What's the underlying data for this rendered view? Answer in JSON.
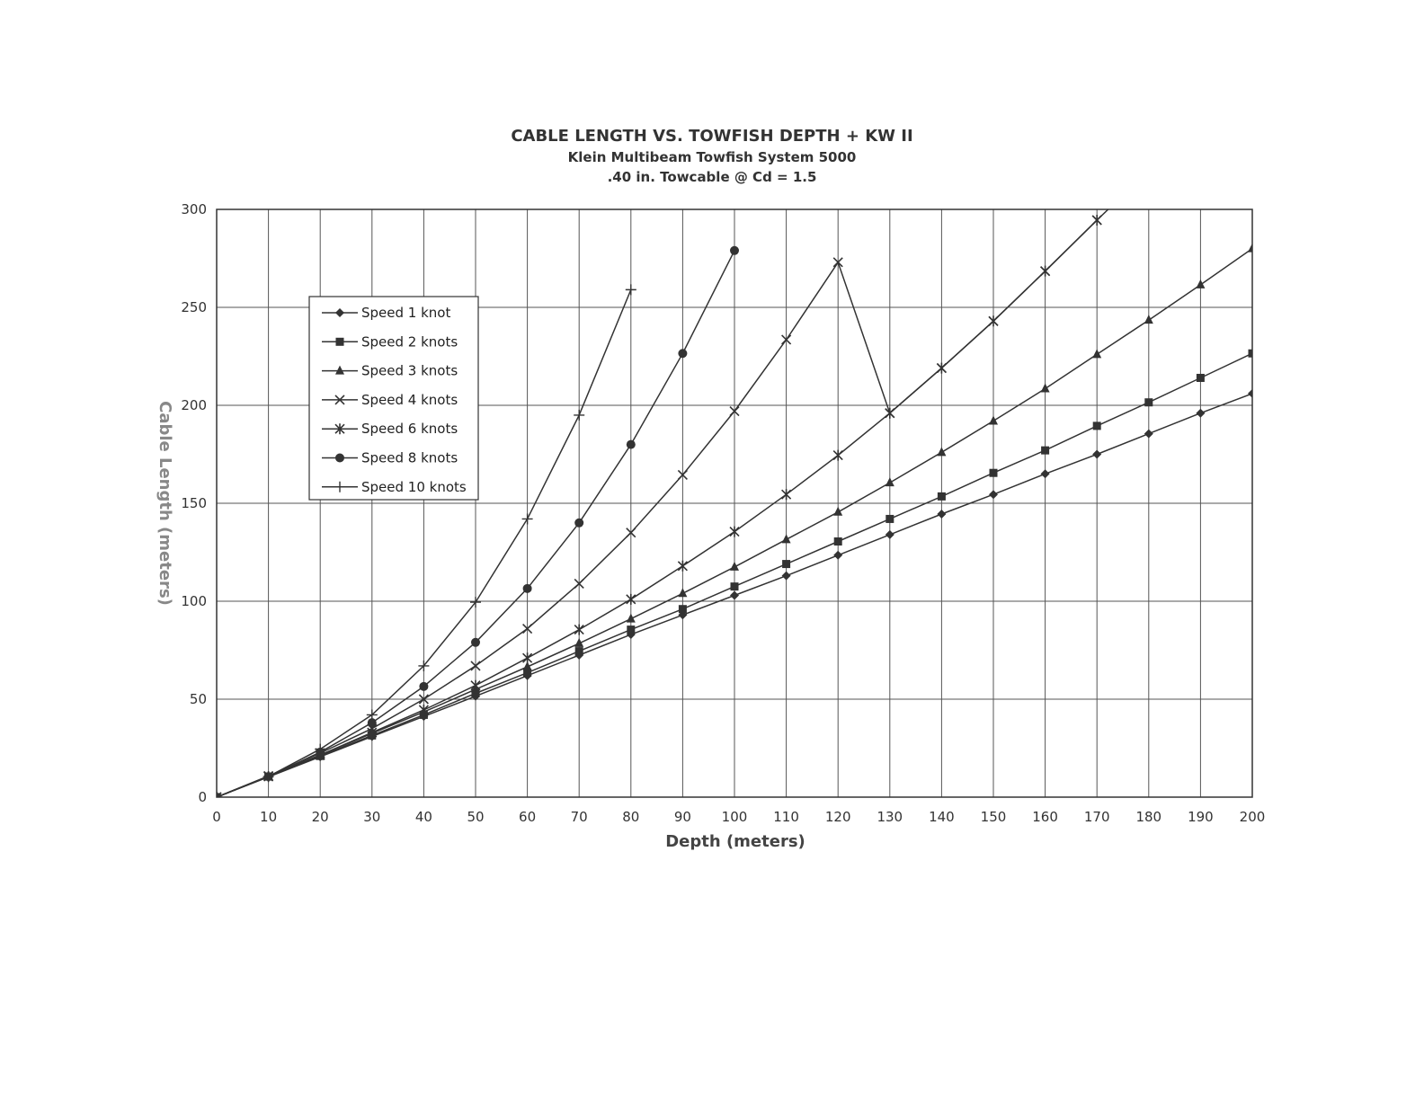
{
  "chart_data": {
    "type": "line",
    "title": "CABLE LENGTH VS. TOWFISH DEPTH + KW II",
    "subtitle": "Klein Multibeam Towfish System 5000",
    "subtitle2": ".40 in. Towcable @ Cd = 1.5",
    "xlabel": "Depth (meters)",
    "ylabel": "Cable Length (meters)",
    "xlim": [
      0,
      200
    ],
    "ylim": [
      0,
      300
    ],
    "xticks": [
      0,
      10,
      20,
      30,
      40,
      50,
      60,
      70,
      80,
      90,
      100,
      110,
      120,
      130,
      140,
      150,
      160,
      170,
      180,
      190,
      200
    ],
    "yticks": [
      0,
      50,
      100,
      150,
      200,
      250,
      300
    ],
    "grid": true,
    "legend_position": "upper-left",
    "line_color": "#333333",
    "axis_title_color_y": "#888888",
    "series": [
      {
        "name": "Speed 1 knot",
        "marker": "diamond",
        "x": [
          0,
          10,
          20,
          30,
          40,
          50,
          60,
          70,
          80,
          90,
          100,
          110,
          120,
          130,
          140,
          150,
          160,
          170,
          180,
          190,
          200
        ],
        "y": [
          0,
          10.3,
          20.6,
          30.9,
          41.2,
          51.5,
          62,
          72.5,
          83,
          93,
          103,
          113,
          123.5,
          134,
          144.5,
          154.5,
          165,
          175,
          185.5,
          196,
          206
        ]
      },
      {
        "name": "Speed 2 knots",
        "marker": "square",
        "x": [
          0,
          10,
          20,
          30,
          40,
          50,
          60,
          70,
          80,
          90,
          100,
          110,
          120,
          130,
          140,
          150,
          160,
          170,
          180,
          190,
          200
        ],
        "y": [
          0,
          10.5,
          21,
          31.5,
          42,
          53,
          63.5,
          74.5,
          85.5,
          96,
          107.5,
          119,
          130.5,
          142,
          153.5,
          165.5,
          177,
          189.5,
          201.5,
          214,
          226.5
        ]
      },
      {
        "name": "Speed 3 knots",
        "marker": "triangle",
        "x": [
          0,
          10,
          20,
          30,
          40,
          50,
          60,
          70,
          80,
          90,
          100,
          110,
          120,
          130,
          140,
          150,
          160,
          170,
          180,
          190,
          200
        ],
        "y": [
          0,
          10.6,
          21.5,
          32.5,
          43.5,
          55,
          66.5,
          78.5,
          91,
          104,
          117.5,
          131.5,
          145.5,
          160.5,
          176,
          192,
          208.5,
          226,
          243.5,
          261.5,
          280
        ]
      },
      {
        "name": "Speed 4 knots",
        "marker": "x",
        "x": [
          0,
          10,
          20,
          30,
          40,
          50,
          60,
          70,
          80,
          90,
          100,
          110,
          120,
          130,
          140,
          150,
          160,
          170
        ],
        "y": [
          0,
          10.8,
          22.5,
          35,
          50,
          67,
          86,
          109,
          135,
          164.5,
          197,
          233.5,
          273,
          196,
          219,
          243,
          268.5,
          294.5
        ]
      },
      {
        "name": "Speed 6 knots",
        "marker": "star",
        "x": [
          0,
          10,
          20,
          30,
          40,
          50,
          60,
          70,
          80,
          90,
          100,
          110,
          120,
          130,
          140,
          150,
          160,
          170,
          180
        ],
        "y": [
          0,
          10.5,
          21.5,
          33,
          44.5,
          57,
          71,
          85.5,
          101,
          118,
          135.5,
          154.5,
          174.5,
          196,
          219,
          243,
          268.5,
          294.5,
          320
        ]
      },
      {
        "name": "Speed 8 knots",
        "marker": "circle",
        "x": [
          0,
          10,
          20,
          30,
          40,
          50,
          60,
          70,
          80,
          90,
          100
        ],
        "y": [
          0,
          10.5,
          23,
          38,
          56.5,
          79,
          106.5,
          140,
          180,
          226.5,
          279
        ]
      },
      {
        "name": "Speed 10 knots",
        "marker": "plus",
        "x": [
          0,
          10,
          20,
          30,
          40,
          50,
          60,
          70,
          80
        ],
        "y": [
          0,
          10.5,
          24.5,
          42,
          67,
          99.5,
          142,
          195,
          259
        ]
      }
    ]
  }
}
